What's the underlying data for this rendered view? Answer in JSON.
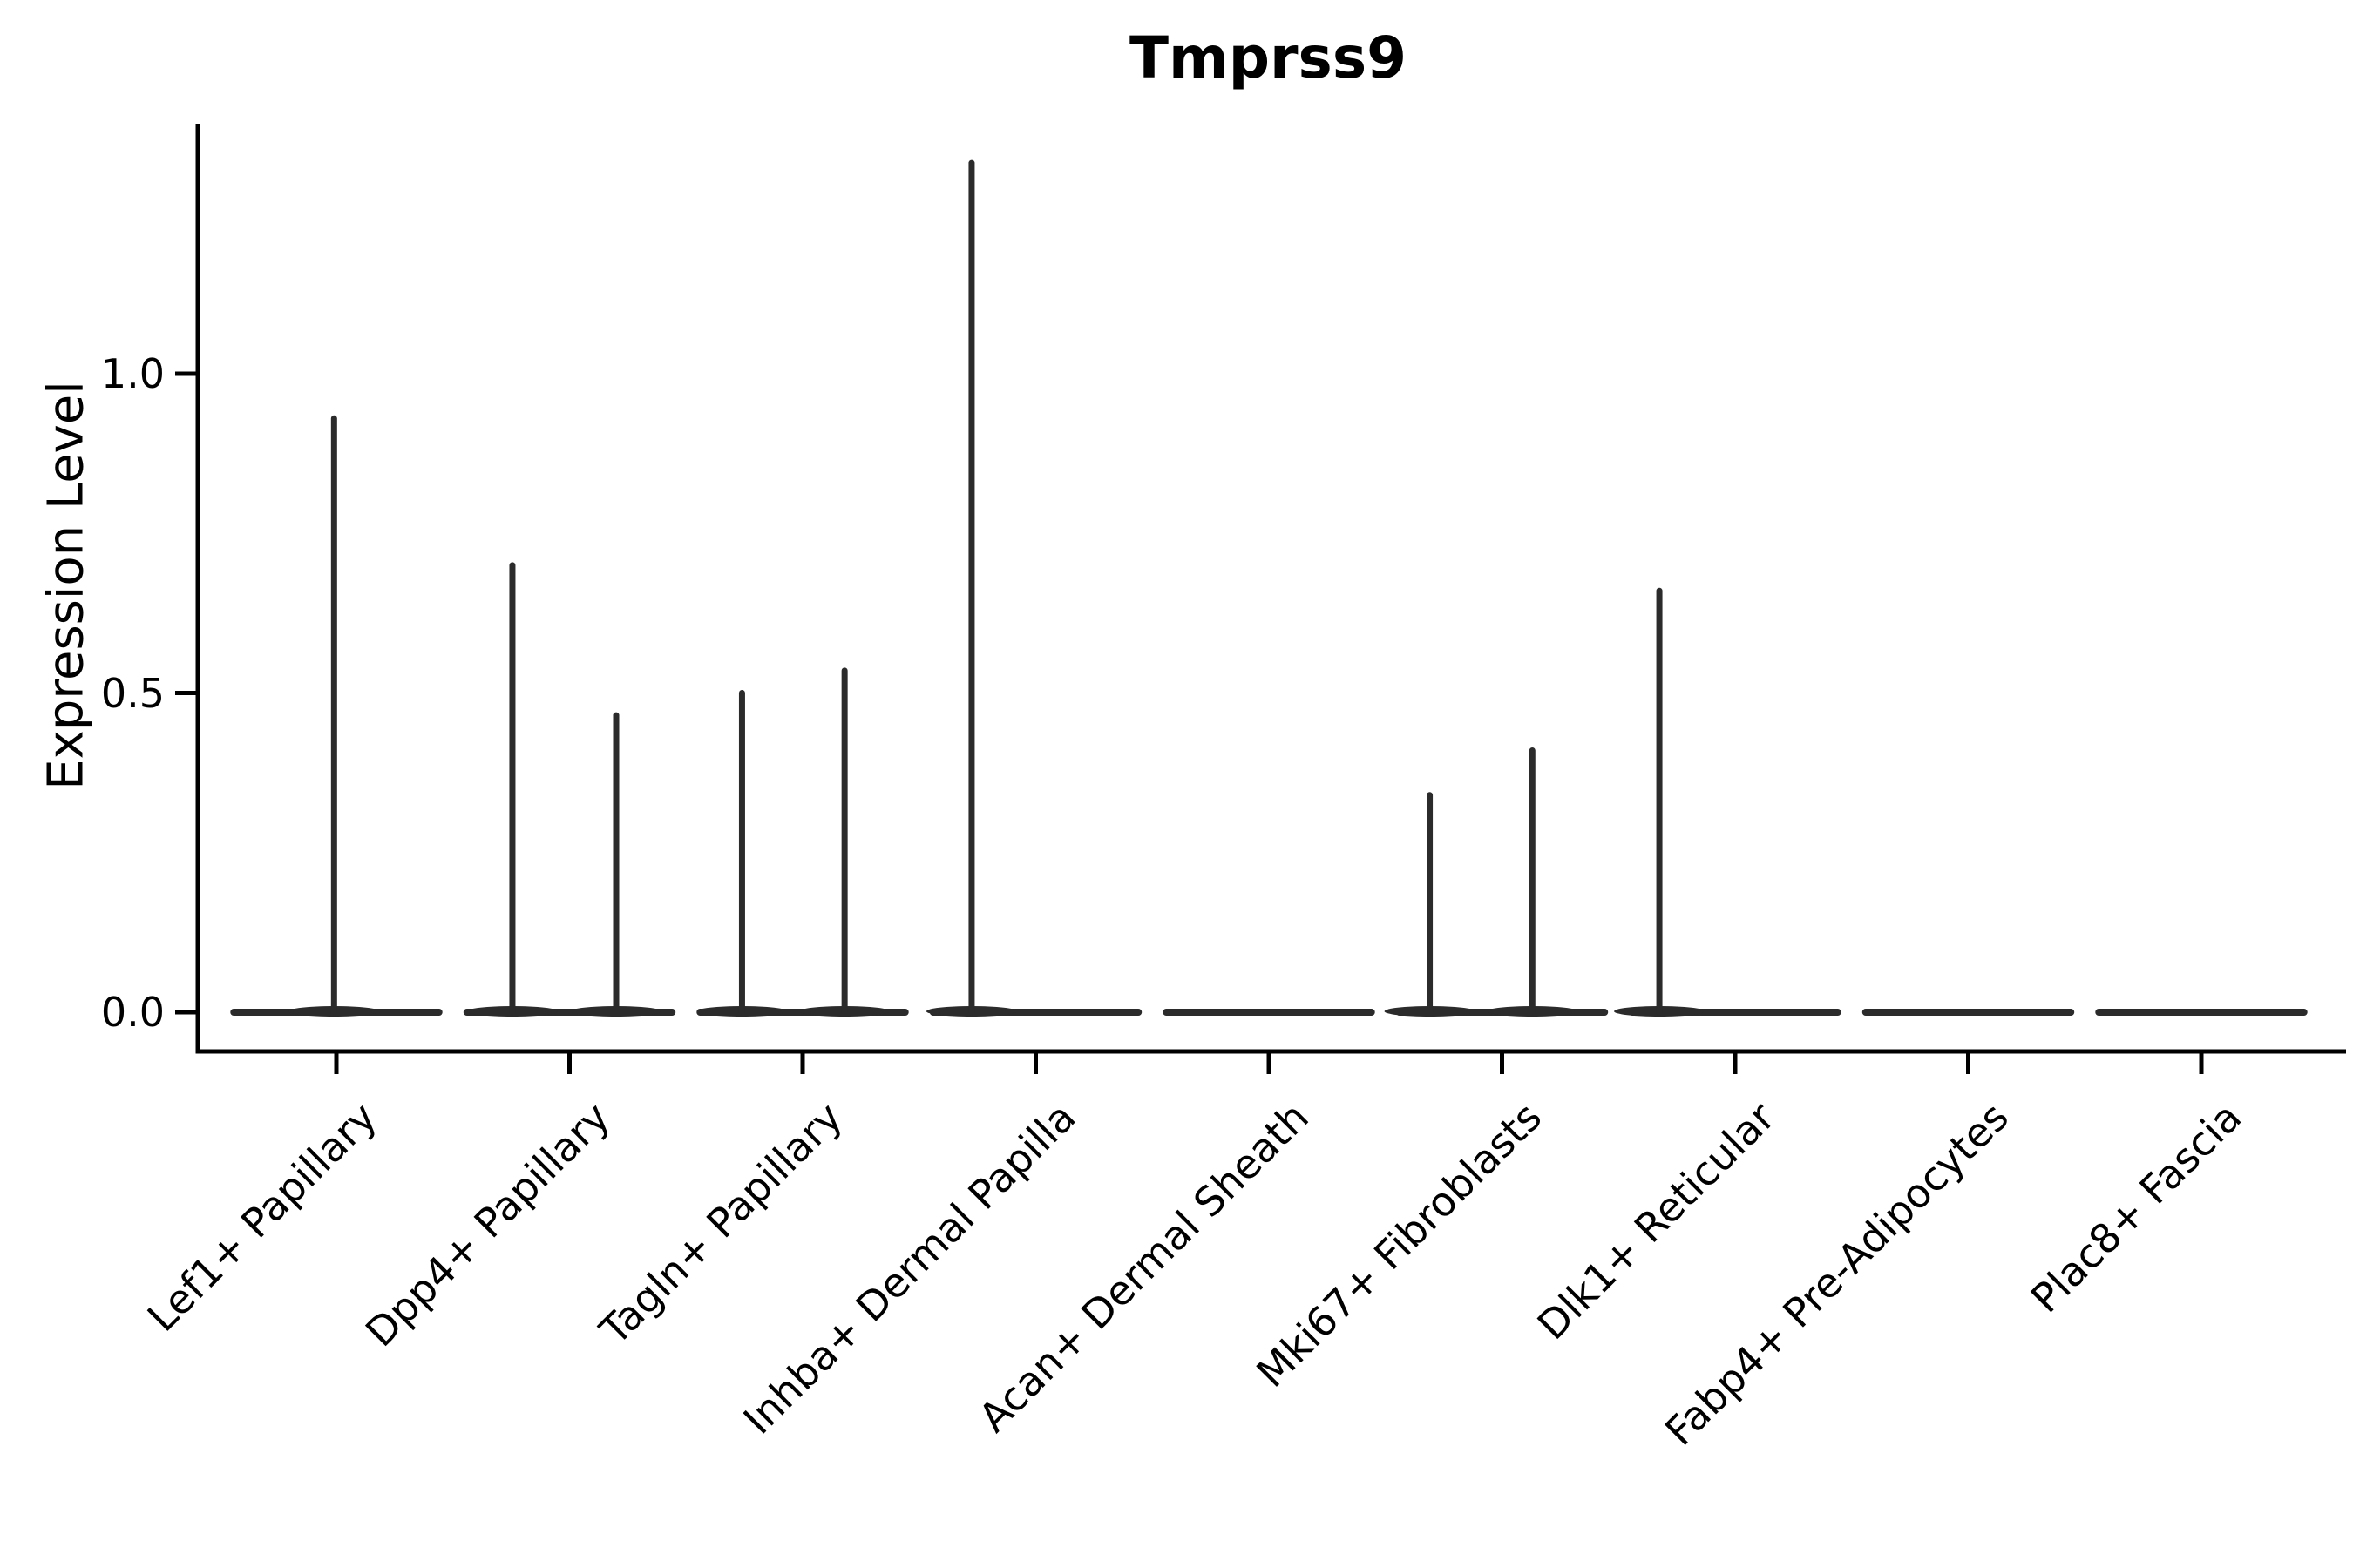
{
  "title": "Tmprss9",
  "axes": {
    "y_label": "Expression Level",
    "y_ticks": [
      {
        "label": "0.0",
        "value": 0.0
      },
      {
        "label": "0.5",
        "value": 0.5
      },
      {
        "label": "1.0",
        "value": 1.0
      }
    ],
    "x_categories": [
      "Lef1+ Papillary",
      "Dpp4+ Papillary",
      "Tagln+ Papillary",
      "Inhba+ Dermal Papilla",
      "Acan+ Dermal Sheath",
      "Mki67+ Fibroblasts",
      "Dlk1+ Reticular",
      "Fabp4+ Pre-Adipocytes",
      "Plac8+ Fascia"
    ]
  },
  "colors": {
    "violin": "#2b2b2b",
    "axis": "#000000",
    "text": "#000000",
    "background": "#ffffff"
  },
  "chart_data": {
    "type": "violin",
    "title": "Tmprss9",
    "xlabel": "",
    "ylabel": "Expression Level",
    "ylim": [
      0,
      1.39
    ],
    "y_ticks": [
      0.0,
      0.5,
      1.0
    ],
    "grid": false,
    "legend": "none",
    "description": "Violin plot of Tmprss9 expression per fibroblast cluster; nearly all cells express 0, producing wide flat bases at 0 with thin density spikes up to the category maximum.",
    "categories": [
      "Lef1+ Papillary",
      "Dpp4+ Papillary",
      "Tagln+ Papillary",
      "Inhba+ Dermal Papilla",
      "Acan+ Dermal Sheath",
      "Mki67+ Fibroblasts",
      "Dlk1+ Reticular",
      "Fabp4+ Pre-Adipocytes",
      "Plac8+ Fascia"
    ],
    "violins": [
      {
        "category": "Lef1+ Papillary",
        "base_half_width": 0.455,
        "max_expression": 0.93,
        "spikes": [
          {
            "x_offset": -0.01,
            "value": 0.93
          }
        ]
      },
      {
        "category": "Dpp4+ Papillary",
        "base_half_width": 0.455,
        "max_expression": 0.7,
        "spikes": [
          {
            "x_offset": -0.245,
            "value": 0.7
          },
          {
            "x_offset": 0.2,
            "value": 0.465
          }
        ]
      },
      {
        "category": "Tagln+ Papillary",
        "base_half_width": 0.455,
        "max_expression": 0.535,
        "spikes": [
          {
            "x_offset": -0.26,
            "value": 0.5
          },
          {
            "x_offset": 0.18,
            "value": 0.535
          }
        ]
      },
      {
        "category": "Inhba+ Dermal Papilla",
        "base_half_width": 0.455,
        "max_expression": 1.33,
        "spikes": [
          {
            "x_offset": -0.275,
            "value": 1.33
          }
        ]
      },
      {
        "category": "Acan+ Dermal Sheath",
        "base_half_width": 0.455,
        "max_expression": 0.0,
        "spikes": []
      },
      {
        "category": "Mki67+ Fibroblasts",
        "base_half_width": 0.455,
        "max_expression": 0.41,
        "spikes": [
          {
            "x_offset": -0.31,
            "value": 0.34
          },
          {
            "x_offset": 0.13,
            "value": 0.41
          }
        ]
      },
      {
        "category": "Dlk1+ Reticular",
        "base_half_width": 0.455,
        "max_expression": 0.66,
        "spikes": [
          {
            "x_offset": -0.325,
            "value": 0.66
          }
        ]
      },
      {
        "category": "Fabp4+ Pre-Adipocytes",
        "base_half_width": 0.455,
        "max_expression": 0.0,
        "spikes": []
      },
      {
        "category": "Plac8+ Fascia",
        "base_half_width": 0.455,
        "max_expression": 0.0,
        "spikes": []
      }
    ]
  }
}
